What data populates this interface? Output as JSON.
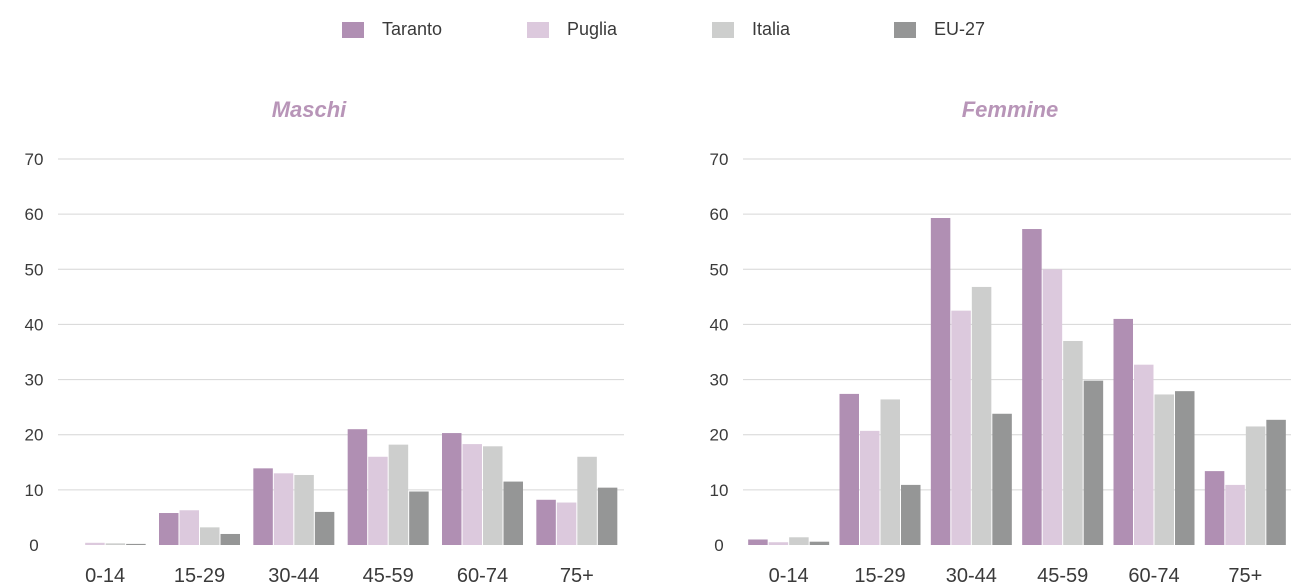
{
  "colors": {
    "title": "#b895b8",
    "grid": "#d6d6d6",
    "tick_text": "#3a3a3a"
  },
  "chart_data": [
    {
      "type": "bar",
      "title": "Maschi",
      "xlabel": "",
      "ylabel": "",
      "ylim": [
        0,
        70
      ],
      "yticks": [
        0,
        10,
        20,
        30,
        40,
        50,
        60,
        70
      ],
      "grid": true,
      "legend": "top-center",
      "categories": [
        "0-14",
        "15-29",
        "30-44",
        "45-59",
        "60-74",
        "75+"
      ],
      "series": [
        {
          "name": "Taranto",
          "color": "#b08fb3",
          "values": [
            0.0,
            5.8,
            13.9,
            21.0,
            20.3,
            8.2
          ]
        },
        {
          "name": "Puglia",
          "color": "#dcc9dd",
          "values": [
            0.4,
            6.3,
            13.0,
            16.0,
            18.3,
            7.7
          ]
        },
        {
          "name": "Italia",
          "color": "#cdcecd",
          "values": [
            0.3,
            3.2,
            12.7,
            18.2,
            17.9,
            16.0
          ]
        },
        {
          "name": "EU-27",
          "color": "#959696",
          "values": [
            0.2,
            2.0,
            6.0,
            9.7,
            11.5,
            10.4
          ]
        }
      ]
    },
    {
      "type": "bar",
      "title": "Femmine",
      "xlabel": "",
      "ylabel": "",
      "ylim": [
        0,
        70
      ],
      "yticks": [
        0,
        10,
        20,
        30,
        40,
        50,
        60,
        70
      ],
      "grid": true,
      "legend": "top-center",
      "categories": [
        "0-14",
        "15-29",
        "30-44",
        "45-59",
        "60-74",
        "75+"
      ],
      "series": [
        {
          "name": "Taranto",
          "color": "#b08fb3",
          "values": [
            1.0,
            27.4,
            59.3,
            57.3,
            41.0,
            13.4
          ]
        },
        {
          "name": "Puglia",
          "color": "#dcc9dd",
          "values": [
            0.5,
            20.7,
            42.5,
            50.0,
            32.7,
            10.9
          ]
        },
        {
          "name": "Italia",
          "color": "#cdcecd",
          "values": [
            1.4,
            26.4,
            46.8,
            37.0,
            27.3,
            21.5
          ]
        },
        {
          "name": "EU-27",
          "color": "#959696",
          "values": [
            0.6,
            10.9,
            23.8,
            29.8,
            27.9,
            22.7
          ]
        }
      ]
    }
  ]
}
